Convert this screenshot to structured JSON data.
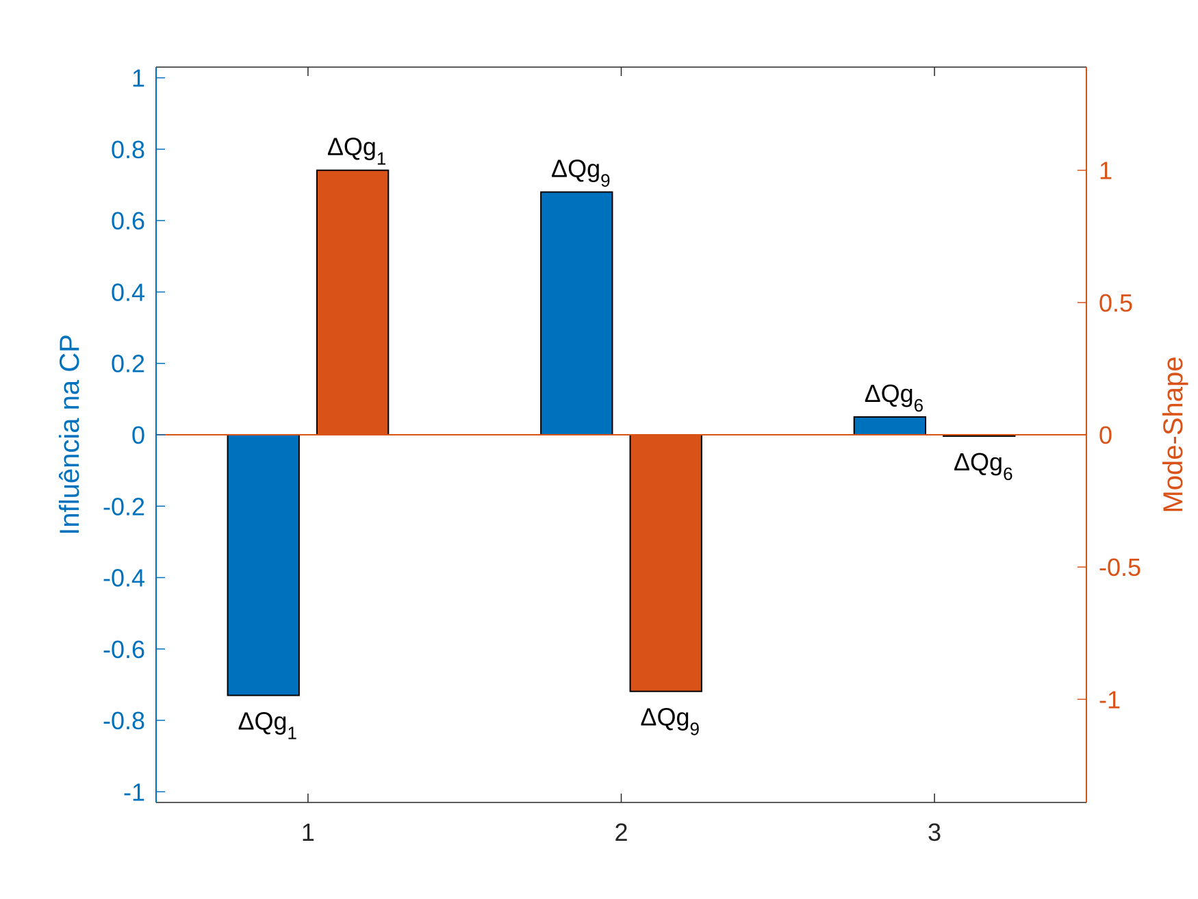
{
  "chart_data": {
    "type": "bar",
    "categories": [
      "1",
      "2",
      "3"
    ],
    "grid": false,
    "legend": "none",
    "series": [
      {
        "axis": "left",
        "color": "#0072BD",
        "values": [
          -0.73,
          0.68,
          0.05
        ],
        "labels": [
          {
            "main": "ΔQg",
            "sub": "1"
          },
          {
            "main": "ΔQg",
            "sub": "9"
          },
          {
            "main": "ΔQg",
            "sub": "6"
          }
        ]
      },
      {
        "axis": "right",
        "color": "#D95319",
        "values": [
          1.0,
          -0.97,
          -0.005
        ],
        "labels": [
          {
            "main": "ΔQg",
            "sub": "1"
          },
          {
            "main": "ΔQg",
            "sub": "9"
          },
          {
            "main": "ΔQg",
            "sub": "6"
          }
        ]
      }
    ],
    "left_axis": {
      "label": "Influência na CP",
      "color": "#0072BD",
      "ylim": [
        -1.03,
        1.03
      ],
      "ticks": [
        -1,
        -0.8,
        -0.6,
        -0.4,
        -0.2,
        0,
        0.2,
        0.4,
        0.6,
        0.8,
        1
      ],
      "tick_labels": [
        "-1",
        "-0.8",
        "-0.6",
        "-0.4",
        "-0.2",
        "0",
        "0.2",
        "0.4",
        "0.6",
        "0.8",
        "1"
      ]
    },
    "right_axis": {
      "label": "Mode-Shape",
      "color": "#D95319",
      "ylim": [
        -1.39,
        1.39
      ],
      "ticks": [
        -1,
        -0.5,
        0,
        0.5,
        1
      ],
      "tick_labels": [
        "-1",
        "-0.5",
        "0",
        "0.5",
        "1"
      ]
    },
    "x_axis": {
      "xlim": [
        0.515,
        3.485
      ],
      "tick_labels": [
        "1",
        "2",
        "3"
      ],
      "color": "#262626"
    },
    "zero_line_color": "#D95319"
  }
}
